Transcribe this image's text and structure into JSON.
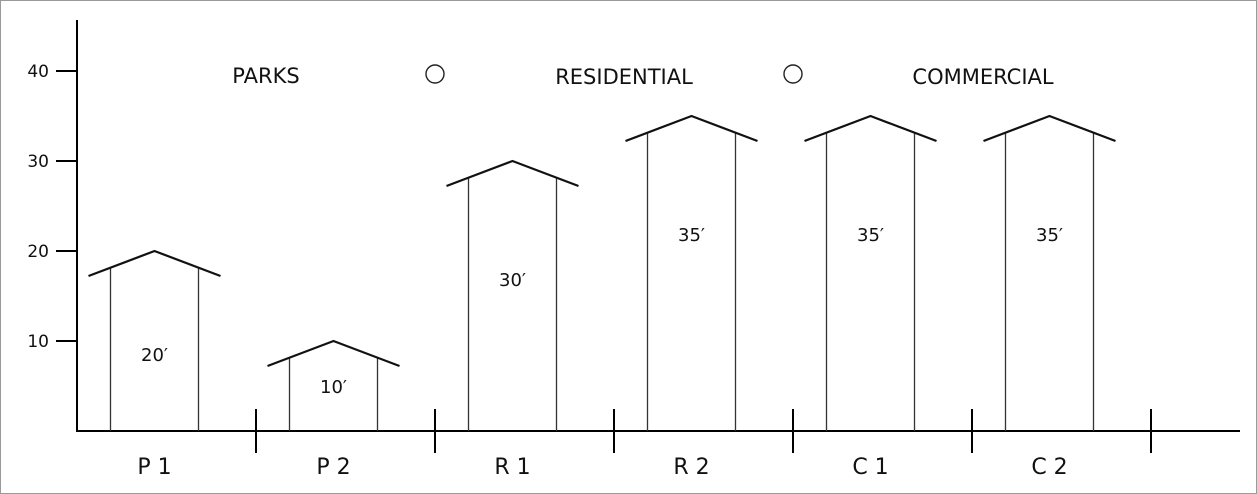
{
  "chart_data": {
    "type": "bar",
    "ylim": [
      0,
      45
    ],
    "yticks": [
      10,
      20,
      30,
      40
    ],
    "categories": [
      "P 1",
      "P 2",
      "R 1",
      "R 2",
      "C 1",
      "C 2"
    ],
    "values": [
      20,
      10,
      30,
      35,
      35,
      35
    ],
    "labels": [
      "20′",
      "10′",
      "30′",
      "35′",
      "35′",
      "35′"
    ],
    "legend": [
      "PARKS",
      "RESIDENTIAL",
      "COMMERCIAL"
    ]
  }
}
